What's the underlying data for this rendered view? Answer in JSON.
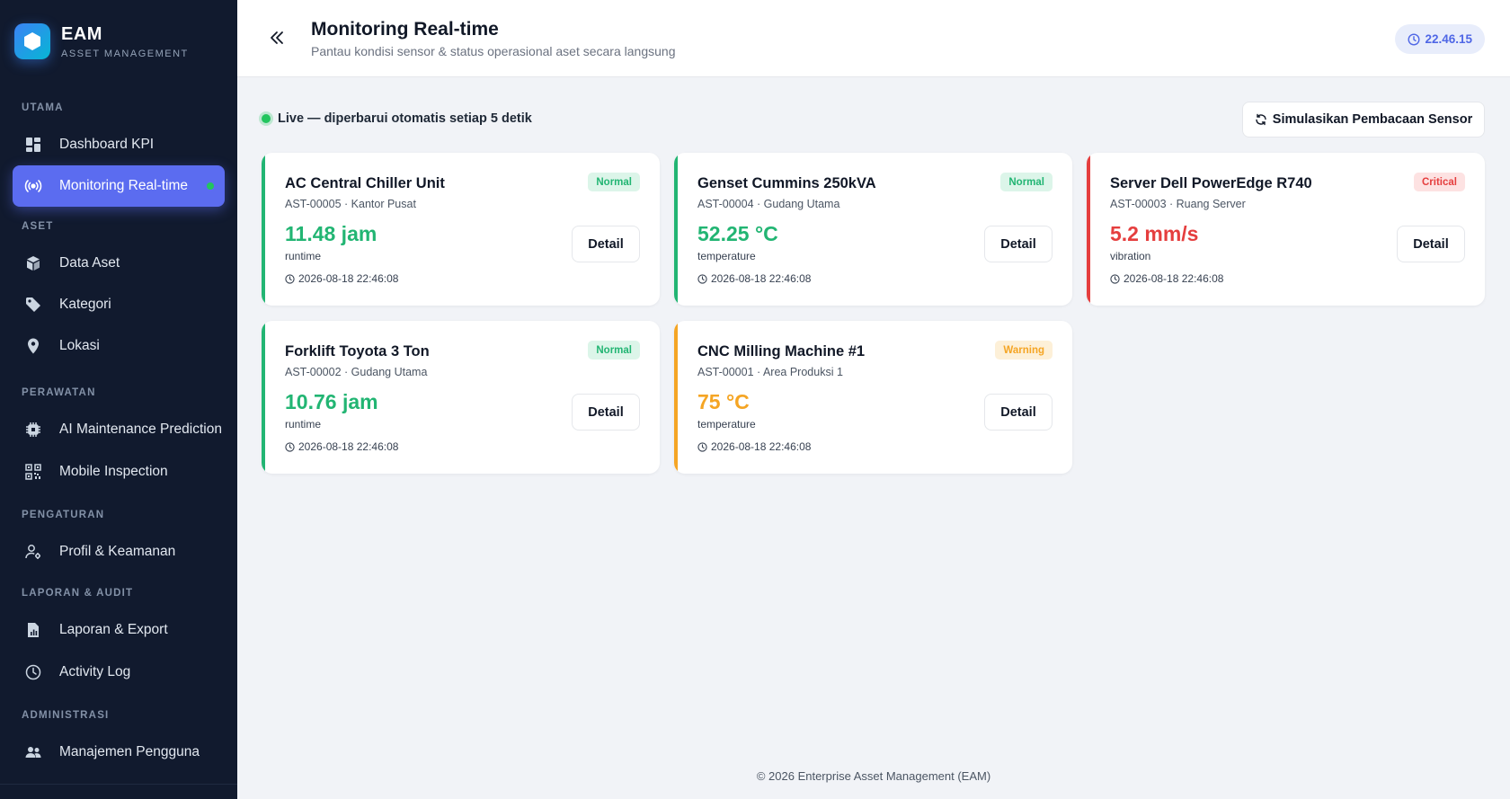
{
  "app": {
    "name": "EAM",
    "subtitle": "ASSET MANAGEMENT",
    "logo_icon": "hexagon-icon"
  },
  "sidebar": {
    "sections": [
      {
        "label": "UTAMA"
      },
      {
        "label": "ASET"
      },
      {
        "label": "PERAWATAN"
      },
      {
        "label": "PENGATURAN"
      },
      {
        "label": "LAPORAN & AUDIT"
      },
      {
        "label": "ADMINISTRASI"
      }
    ],
    "items": [
      {
        "label": "Dashboard KPI",
        "icon": "dashboard-icon"
      },
      {
        "label": "Monitoring Real-time",
        "icon": "broadcast-icon",
        "active": true
      },
      {
        "label": "Data Aset",
        "icon": "box-icon"
      },
      {
        "label": "Kategori",
        "icon": "tag-icon"
      },
      {
        "label": "Lokasi",
        "icon": "map-pin-icon"
      },
      {
        "label": "AI Maintenance Prediction",
        "icon": "cpu-chip-icon"
      },
      {
        "label": "Mobile Inspection",
        "icon": "qr-code-icon"
      },
      {
        "label": "Profil & Keamanan",
        "icon": "user-gear-icon"
      },
      {
        "label": "Laporan & Export",
        "icon": "file-chart-icon"
      },
      {
        "label": "Activity Log",
        "icon": "clock-icon"
      },
      {
        "label": "Manajemen Pengguna",
        "icon": "users-icon"
      }
    ]
  },
  "header": {
    "title": "Monitoring Real-time",
    "subtitle": "Pantau kondisi sensor & status operasional aset secara langsung",
    "clock": "22.46.15"
  },
  "main": {
    "live_text": "Live — diperbarui otomatis setiap 5 detik",
    "simulate_label": "Simulasikan Pembacaan Sensor",
    "cards": [
      {
        "name": "AC Central Chiller Unit",
        "meta": "AST-00005 · Kantor Pusat",
        "value": "11.48 jam",
        "metric": "runtime",
        "time": "2026-08-18 22:46:08",
        "status": "Normal",
        "detail_label": "Detail",
        "color": "#22b573"
      },
      {
        "name": "Genset Cummins 250kVA",
        "meta": "AST-00004 · Gudang Utama",
        "value": "52.25 °C",
        "metric": "temperature",
        "time": "2026-08-18 22:46:08",
        "status": "Normal",
        "detail_label": "Detail",
        "color": "#22b573"
      },
      {
        "name": "Server Dell PowerEdge R740",
        "meta": "AST-00003 · Ruang Server",
        "value": "5.2 mm/s",
        "metric": "vibration",
        "time": "2026-08-18 22:46:08",
        "status": "Critical",
        "detail_label": "Detail",
        "color": "#e53e3e"
      },
      {
        "name": "Forklift Toyota 3 Ton",
        "meta": "AST-00002 · Gudang Utama",
        "value": "10.76 jam",
        "metric": "runtime",
        "time": "2026-08-18 22:46:08",
        "status": "Normal",
        "detail_label": "Detail",
        "color": "#22b573"
      },
      {
        "name": "CNC Milling Machine #1",
        "meta": "AST-00001 · Area Produksi 1",
        "value": "75 °C",
        "metric": "temperature",
        "time": "2026-08-18 22:46:08",
        "status": "Warning",
        "detail_label": "Detail",
        "color": "#f5a524"
      }
    ]
  },
  "footer": {
    "text": "© 2026 Enterprise Asset Management (EAM)"
  },
  "colors": {
    "sidebar_bg": "#111a2e",
    "accent": "#5b6cf0",
    "normal": "#22b573",
    "warning": "#f5a524",
    "critical": "#e53e3e"
  }
}
